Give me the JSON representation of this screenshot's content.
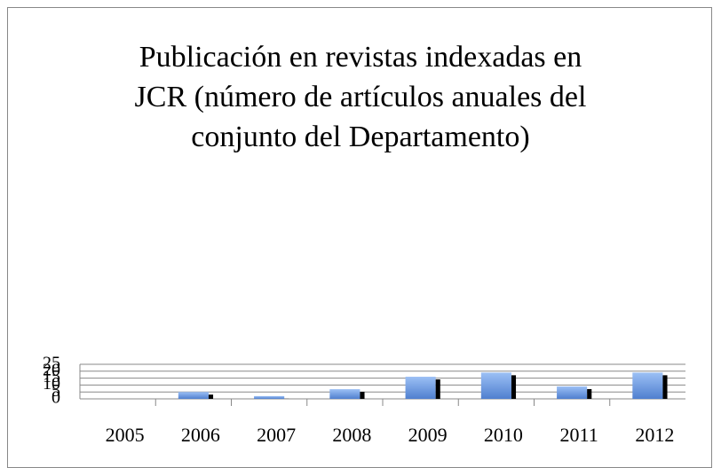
{
  "chart_data": {
    "type": "bar",
    "title": "Publicación en revistas indexadas en JCR (número de artículos anuales del conjunto del Departamento)",
    "categories": [
      "2005",
      "2006",
      "2007",
      "2008",
      "2009",
      "2010",
      "2011",
      "2012"
    ],
    "values": [
      0,
      5,
      2,
      7,
      16,
      19,
      9,
      19
    ],
    "color": "#6f9be0",
    "ylim": [
      0,
      25
    ],
    "yticks": [
      0,
      5,
      10,
      15,
      20,
      25
    ],
    "grid": true
  }
}
